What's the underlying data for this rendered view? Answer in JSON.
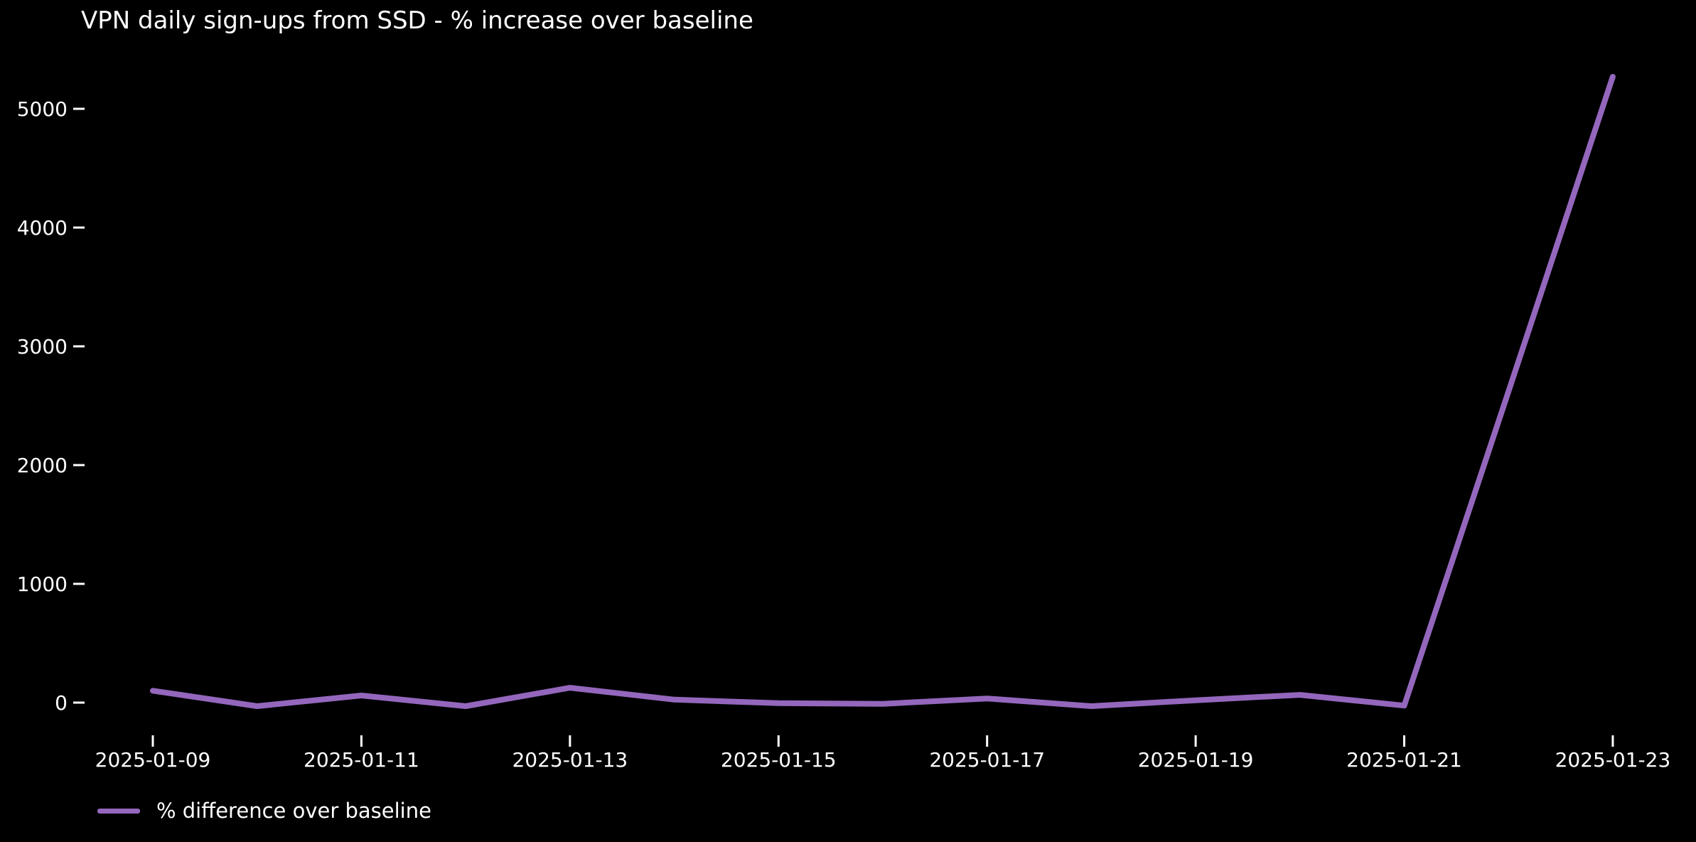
{
  "chart_data": {
    "type": "line",
    "title": "VPN daily sign-ups from SSD - % increase over baseline",
    "xlabel": "",
    "ylabel": "",
    "x": [
      "2025-01-09",
      "2025-01-10",
      "2025-01-11",
      "2025-01-12",
      "2025-01-13",
      "2025-01-14",
      "2025-01-15",
      "2025-01-16",
      "2025-01-17",
      "2025-01-18",
      "2025-01-19",
      "2025-01-20",
      "2025-01-21",
      "2025-01-22",
      "2025-01-23"
    ],
    "series": [
      {
        "name": "% difference over baseline",
        "color": "#9467bd",
        "values": [
          100,
          -30,
          60,
          -30,
          125,
          25,
          -5,
          -10,
          35,
          -30,
          20,
          65,
          -25,
          2620,
          5270
        ]
      }
    ],
    "x_tick_labels": [
      "2025-01-09",
      "2025-01-11",
      "2025-01-13",
      "2025-01-15",
      "2025-01-17",
      "2025-01-19",
      "2025-01-21",
      "2025-01-23"
    ],
    "y_ticks": [
      0,
      1000,
      2000,
      3000,
      4000,
      5000
    ],
    "ylim": [
      -150,
      5560
    ],
    "grid": false,
    "legend_position": "lower-left",
    "background_color": "#000000",
    "text_color": "#ffffff"
  }
}
